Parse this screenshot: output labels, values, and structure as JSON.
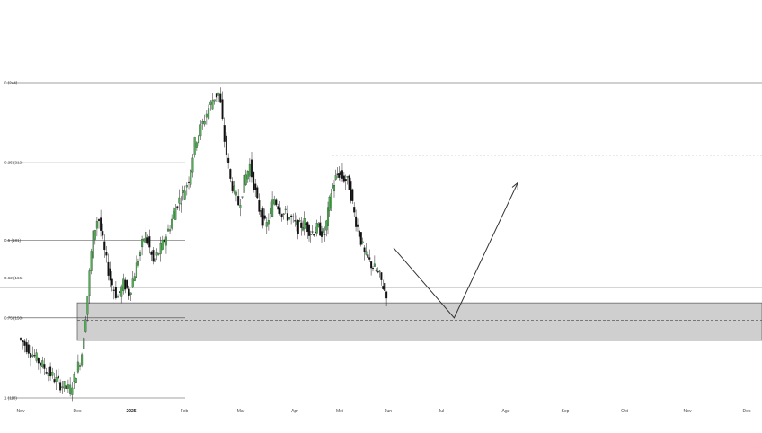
{
  "chart_data": {
    "type": "candlestick",
    "title": "",
    "xlabel": "",
    "ylabel": "",
    "x_tick_labels": [
      "Nov",
      "Dec",
      "2025",
      "Feb",
      "Mar",
      "Apr",
      "Mei",
      "Jun",
      "Jul",
      "Agu",
      "Sep",
      "Okt",
      "Nov",
      "Dec"
    ],
    "fib_levels": [
      {
        "label": "0 (244)",
        "ratio": 0,
        "price": 244
      },
      {
        "label": "0.25 (212)",
        "ratio": 0.25,
        "price": 212
      },
      {
        "label": "0.5 (181)",
        "ratio": 0.5,
        "price": 181
      },
      {
        "label": "0.62 (166)",
        "ratio": 0.62,
        "price": 166
      },
      {
        "label": "0.75 (150)",
        "ratio": 0.75,
        "price": 150
      },
      {
        "label": "1 (118)",
        "ratio": 1,
        "price": 118
      }
    ],
    "demand_zone": {
      "price_top": 156,
      "price_bottom": 141,
      "price_mid": 149
    },
    "resistance_dotted_price": 215,
    "support_line_price": 120,
    "current_price_line": 162,
    "projection_path": [
      {
        "month_index": 7.1,
        "price": 178
      },
      {
        "month_index": 8.2,
        "price": 150
      },
      {
        "month_index": 9.2,
        "price": 204
      }
    ],
    "colors": {
      "up_candle": "#4caf50",
      "down_candle": "#111111",
      "zone_fill": "#cfcfcf",
      "line": "#333333"
    },
    "grid": false
  }
}
